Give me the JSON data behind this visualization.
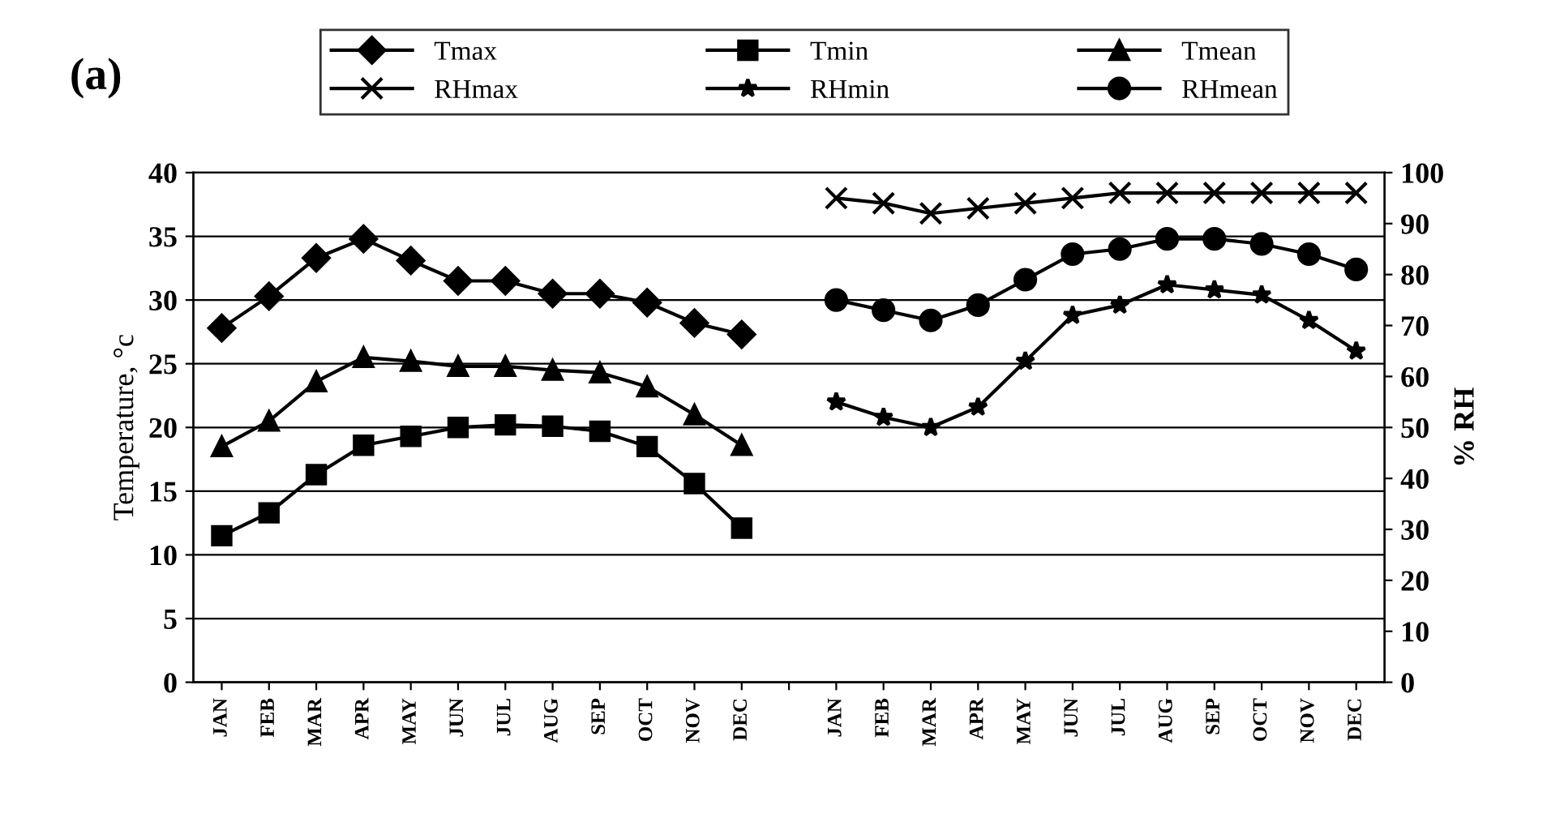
{
  "chart_data": {
    "type": "line",
    "categories": [
      "JAN",
      "FEB",
      "MAR",
      "APR",
      "MAY",
      "JUN",
      "JUL",
      "AUG",
      "SEP",
      "OCT",
      "NOV",
      "DEC",
      null,
      "JAN",
      "FEB",
      "MAR",
      "APR",
      "MAY",
      "JUN",
      "JUL",
      "AUG",
      "SEP",
      "OCT",
      "NOV",
      "DEC"
    ],
    "ylabel": "Temperature, °c",
    "y2label": "% RH",
    "annotations": [
      "(a)"
    ],
    "ylim": [
      0,
      40
    ],
    "yticks": [
      0,
      5,
      10,
      15,
      20,
      25,
      30,
      35,
      40
    ],
    "y2lim": [
      0,
      100
    ],
    "y2ticks": [
      0,
      10,
      20,
      30,
      40,
      50,
      60,
      70,
      80,
      90,
      100
    ],
    "grid": "y",
    "legend": "top",
    "line_style": "solid",
    "series": [
      {
        "name": "Tmax",
        "color": "#000000",
        "marker": "diamond",
        "values": [
          27.8,
          30.3,
          33.3,
          34.8,
          33.1,
          31.5,
          31.5,
          30.5,
          30.5,
          29.8,
          28.2,
          27.3,
          null,
          null,
          null,
          null,
          null,
          null,
          null,
          null,
          null,
          null,
          null,
          null,
          null
        ]
      },
      {
        "name": "Tmin",
        "color": "#000000",
        "marker": "square",
        "values": [
          11.5,
          13.3,
          16.3,
          18.6,
          19.3,
          20.0,
          20.2,
          20.1,
          19.7,
          18.5,
          15.6,
          12.1,
          null,
          null,
          null,
          null,
          null,
          null,
          null,
          null,
          null,
          null,
          null,
          null,
          null
        ]
      },
      {
        "name": "Tmean",
        "color": "#000000",
        "marker": "triangle",
        "values": [
          18.5,
          20.5,
          23.6,
          25.5,
          25.2,
          24.8,
          24.8,
          24.5,
          24.3,
          23.2,
          21.0,
          18.6,
          null,
          null,
          null,
          null,
          null,
          null,
          null,
          null,
          null,
          null,
          null,
          null,
          null
        ]
      },
      {
        "name": "RHmax",
        "color": "#000000",
        "marker": "cross",
        "axis": "y2",
        "values": [
          null,
          null,
          null,
          null,
          null,
          null,
          null,
          null,
          null,
          null,
          null,
          null,
          null,
          95,
          94,
          92,
          93,
          94,
          95,
          96,
          96,
          96,
          96,
          96,
          96
        ]
      },
      {
        "name": "RHmin",
        "color": "#000000",
        "marker": "star",
        "axis": "y2",
        "values": [
          null,
          null,
          null,
          null,
          null,
          null,
          null,
          null,
          null,
          null,
          null,
          null,
          null,
          55,
          52,
          50,
          54,
          63,
          72,
          74,
          78,
          77,
          76,
          71,
          65
        ]
      },
      {
        "name": "RHmean",
        "color": "#000000",
        "marker": "circle",
        "axis": "y2",
        "values": [
          null,
          null,
          null,
          null,
          null,
          null,
          null,
          null,
          null,
          null,
          null,
          null,
          null,
          75,
          73,
          71,
          74,
          79,
          84,
          85,
          87,
          87,
          86,
          84,
          81
        ]
      }
    ]
  }
}
